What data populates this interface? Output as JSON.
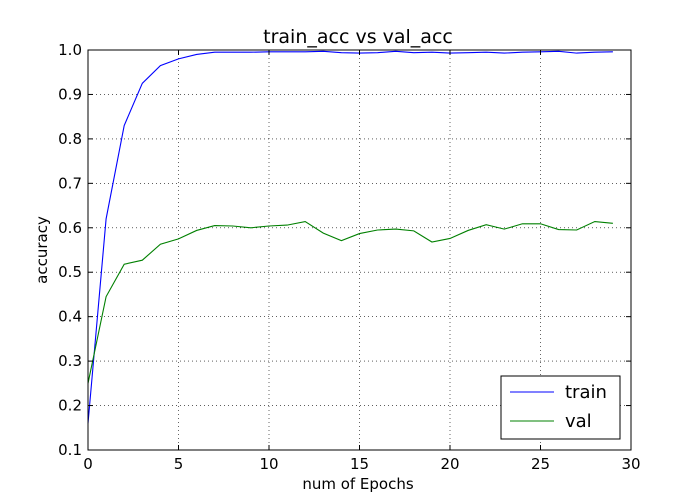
{
  "chart_data": {
    "type": "line",
    "title": "train_acc vs val_acc",
    "xlabel": "num of Epochs",
    "ylabel": "accuracy",
    "xlim": [
      0,
      30
    ],
    "ylim": [
      0.1,
      1.0
    ],
    "xticks": [
      0,
      5,
      10,
      15,
      20,
      25,
      30
    ],
    "yticks": [
      0.1,
      0.2,
      0.3,
      0.4,
      0.5,
      0.6,
      0.7,
      0.8,
      0.9,
      1.0
    ],
    "xtick_labels": [
      "0",
      "5",
      "10",
      "15",
      "20",
      "25",
      "30"
    ],
    "ytick_labels": [
      "0.1",
      "0.2",
      "0.3",
      "0.4",
      "0.5",
      "0.6",
      "0.7",
      "0.8",
      "0.9",
      "1.0"
    ],
    "grid": true,
    "legend": "bottom-right",
    "x": [
      0,
      1,
      2,
      3,
      4,
      5,
      6,
      7,
      8,
      9,
      10,
      11,
      12,
      13,
      14,
      15,
      16,
      17,
      18,
      19,
      20,
      21,
      22,
      23,
      24,
      25,
      26,
      27,
      28,
      29
    ],
    "series": [
      {
        "name": "train",
        "color": "#0000ff",
        "values": [
          0.16,
          0.62,
          0.83,
          0.925,
          0.965,
          0.98,
          0.99,
          0.995,
          0.995,
          0.995,
          0.996,
          0.996,
          0.996,
          0.997,
          0.994,
          0.993,
          0.994,
          0.997,
          0.994,
          0.995,
          0.993,
          0.994,
          0.995,
          0.993,
          0.995,
          0.996,
          0.997,
          0.993,
          0.995,
          0.996
        ]
      },
      {
        "name": "val",
        "color": "#008000",
        "values": [
          0.25,
          0.445,
          0.518,
          0.527,
          0.563,
          0.575,
          0.594,
          0.605,
          0.604,
          0.6,
          0.604,
          0.606,
          0.614,
          0.588,
          0.571,
          0.587,
          0.595,
          0.597,
          0.593,
          0.568,
          0.576,
          0.594,
          0.607,
          0.597,
          0.609,
          0.609,
          0.596,
          0.595,
          0.614,
          0.61
        ]
      }
    ]
  }
}
